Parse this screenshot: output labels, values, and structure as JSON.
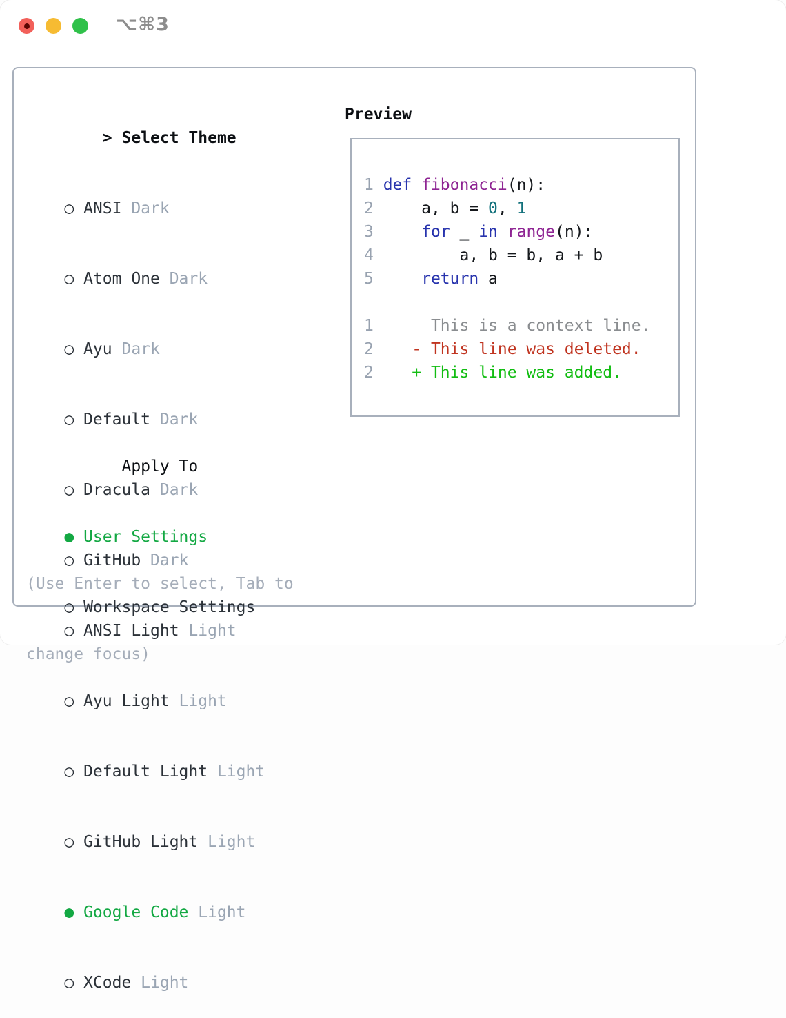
{
  "window": {
    "title": "⌥⌘3"
  },
  "glyphs": {
    "prompt": ">",
    "selected_marker": "●",
    "unselected_marker": "○"
  },
  "theme_list": {
    "header": "Select Theme",
    "items": [
      {
        "name": "ANSI",
        "variant": "Dark",
        "selected": false
      },
      {
        "name": "Atom One",
        "variant": "Dark",
        "selected": false
      },
      {
        "name": "Ayu",
        "variant": "Dark",
        "selected": false
      },
      {
        "name": "Default",
        "variant": "Dark",
        "selected": false
      },
      {
        "name": "Dracula",
        "variant": "Dark",
        "selected": false
      },
      {
        "name": "GitHub",
        "variant": "Dark",
        "selected": false
      },
      {
        "name": "ANSI Light",
        "variant": "Light",
        "selected": false
      },
      {
        "name": "Ayu Light",
        "variant": "Light",
        "selected": false
      },
      {
        "name": "Default Light",
        "variant": "Light",
        "selected": false
      },
      {
        "name": "GitHub Light",
        "variant": "Light",
        "selected": false
      },
      {
        "name": "Google Code",
        "variant": "Light",
        "selected": true
      },
      {
        "name": "XCode",
        "variant": "Light",
        "selected": false
      }
    ]
  },
  "apply_to": {
    "header": "Apply To",
    "options": [
      {
        "label": "User Settings",
        "selected": true
      },
      {
        "label": "Workspace Settings",
        "selected": false
      }
    ]
  },
  "help": {
    "lines": [
      "(Use Enter to select, Tab to",
      "change focus)"
    ]
  },
  "preview": {
    "header": "Preview",
    "lines": [
      [
        {
          "t": "1 ",
          "c": "num"
        },
        {
          "t": "def",
          "c": "kw"
        },
        {
          "t": " ",
          "c": "pl"
        },
        {
          "t": "fibonacci",
          "c": "fn"
        },
        {
          "t": "(n):",
          "c": "pl"
        }
      ],
      [
        {
          "t": "2 ",
          "c": "num"
        },
        {
          "t": "    a, b = ",
          "c": "pl"
        },
        {
          "t": "0",
          "c": "lit"
        },
        {
          "t": ", ",
          "c": "pl"
        },
        {
          "t": "1",
          "c": "lit"
        }
      ],
      [
        {
          "t": "3 ",
          "c": "num"
        },
        {
          "t": "    ",
          "c": "pl"
        },
        {
          "t": "for",
          "c": "kw"
        },
        {
          "t": " _ ",
          "c": "pl"
        },
        {
          "t": "in",
          "c": "kw"
        },
        {
          "t": " ",
          "c": "pl"
        },
        {
          "t": "range",
          "c": "fn"
        },
        {
          "t": "(n):",
          "c": "pl"
        }
      ],
      [
        {
          "t": "4 ",
          "c": "num"
        },
        {
          "t": "        a, b = b, a + b",
          "c": "pl"
        }
      ],
      [
        {
          "t": "5 ",
          "c": "num"
        },
        {
          "t": "    ",
          "c": "pl"
        },
        {
          "t": "return",
          "c": "kw"
        },
        {
          "t": " a",
          "c": "pl"
        }
      ],
      [],
      [
        {
          "t": "1 ",
          "c": "num"
        },
        {
          "t": "     This is a context line.",
          "c": "ctx"
        }
      ],
      [
        {
          "t": "2 ",
          "c": "num"
        },
        {
          "t": "   - This line was deleted.",
          "c": "del"
        }
      ],
      [
        {
          "t": "2 ",
          "c": "num"
        },
        {
          "t": "   + This line was added.",
          "c": "add"
        }
      ]
    ]
  },
  "colors": {
    "tl_red": "#f2605a",
    "tl_red_dot": "#5a0502",
    "tl_yellow": "#f6bb32",
    "tl_green": "#30c14a",
    "title_gray": "#8d8d8d",
    "panel_border": "#a8b0bc",
    "header_black": "#0c0f13",
    "text_dark": "#2b3138",
    "muted": "#9aa5b3",
    "help_gray": "#a5adb9",
    "line_number": "#98a2b0",
    "ui_green": "#13a843",
    "keyword_blue": "#2733ad",
    "function_purple": "#8e2493",
    "literal_teal": "#11707b",
    "context_gray": "#8a8d90",
    "deleted_red": "#c03420",
    "added_green": "#12bd12"
  }
}
